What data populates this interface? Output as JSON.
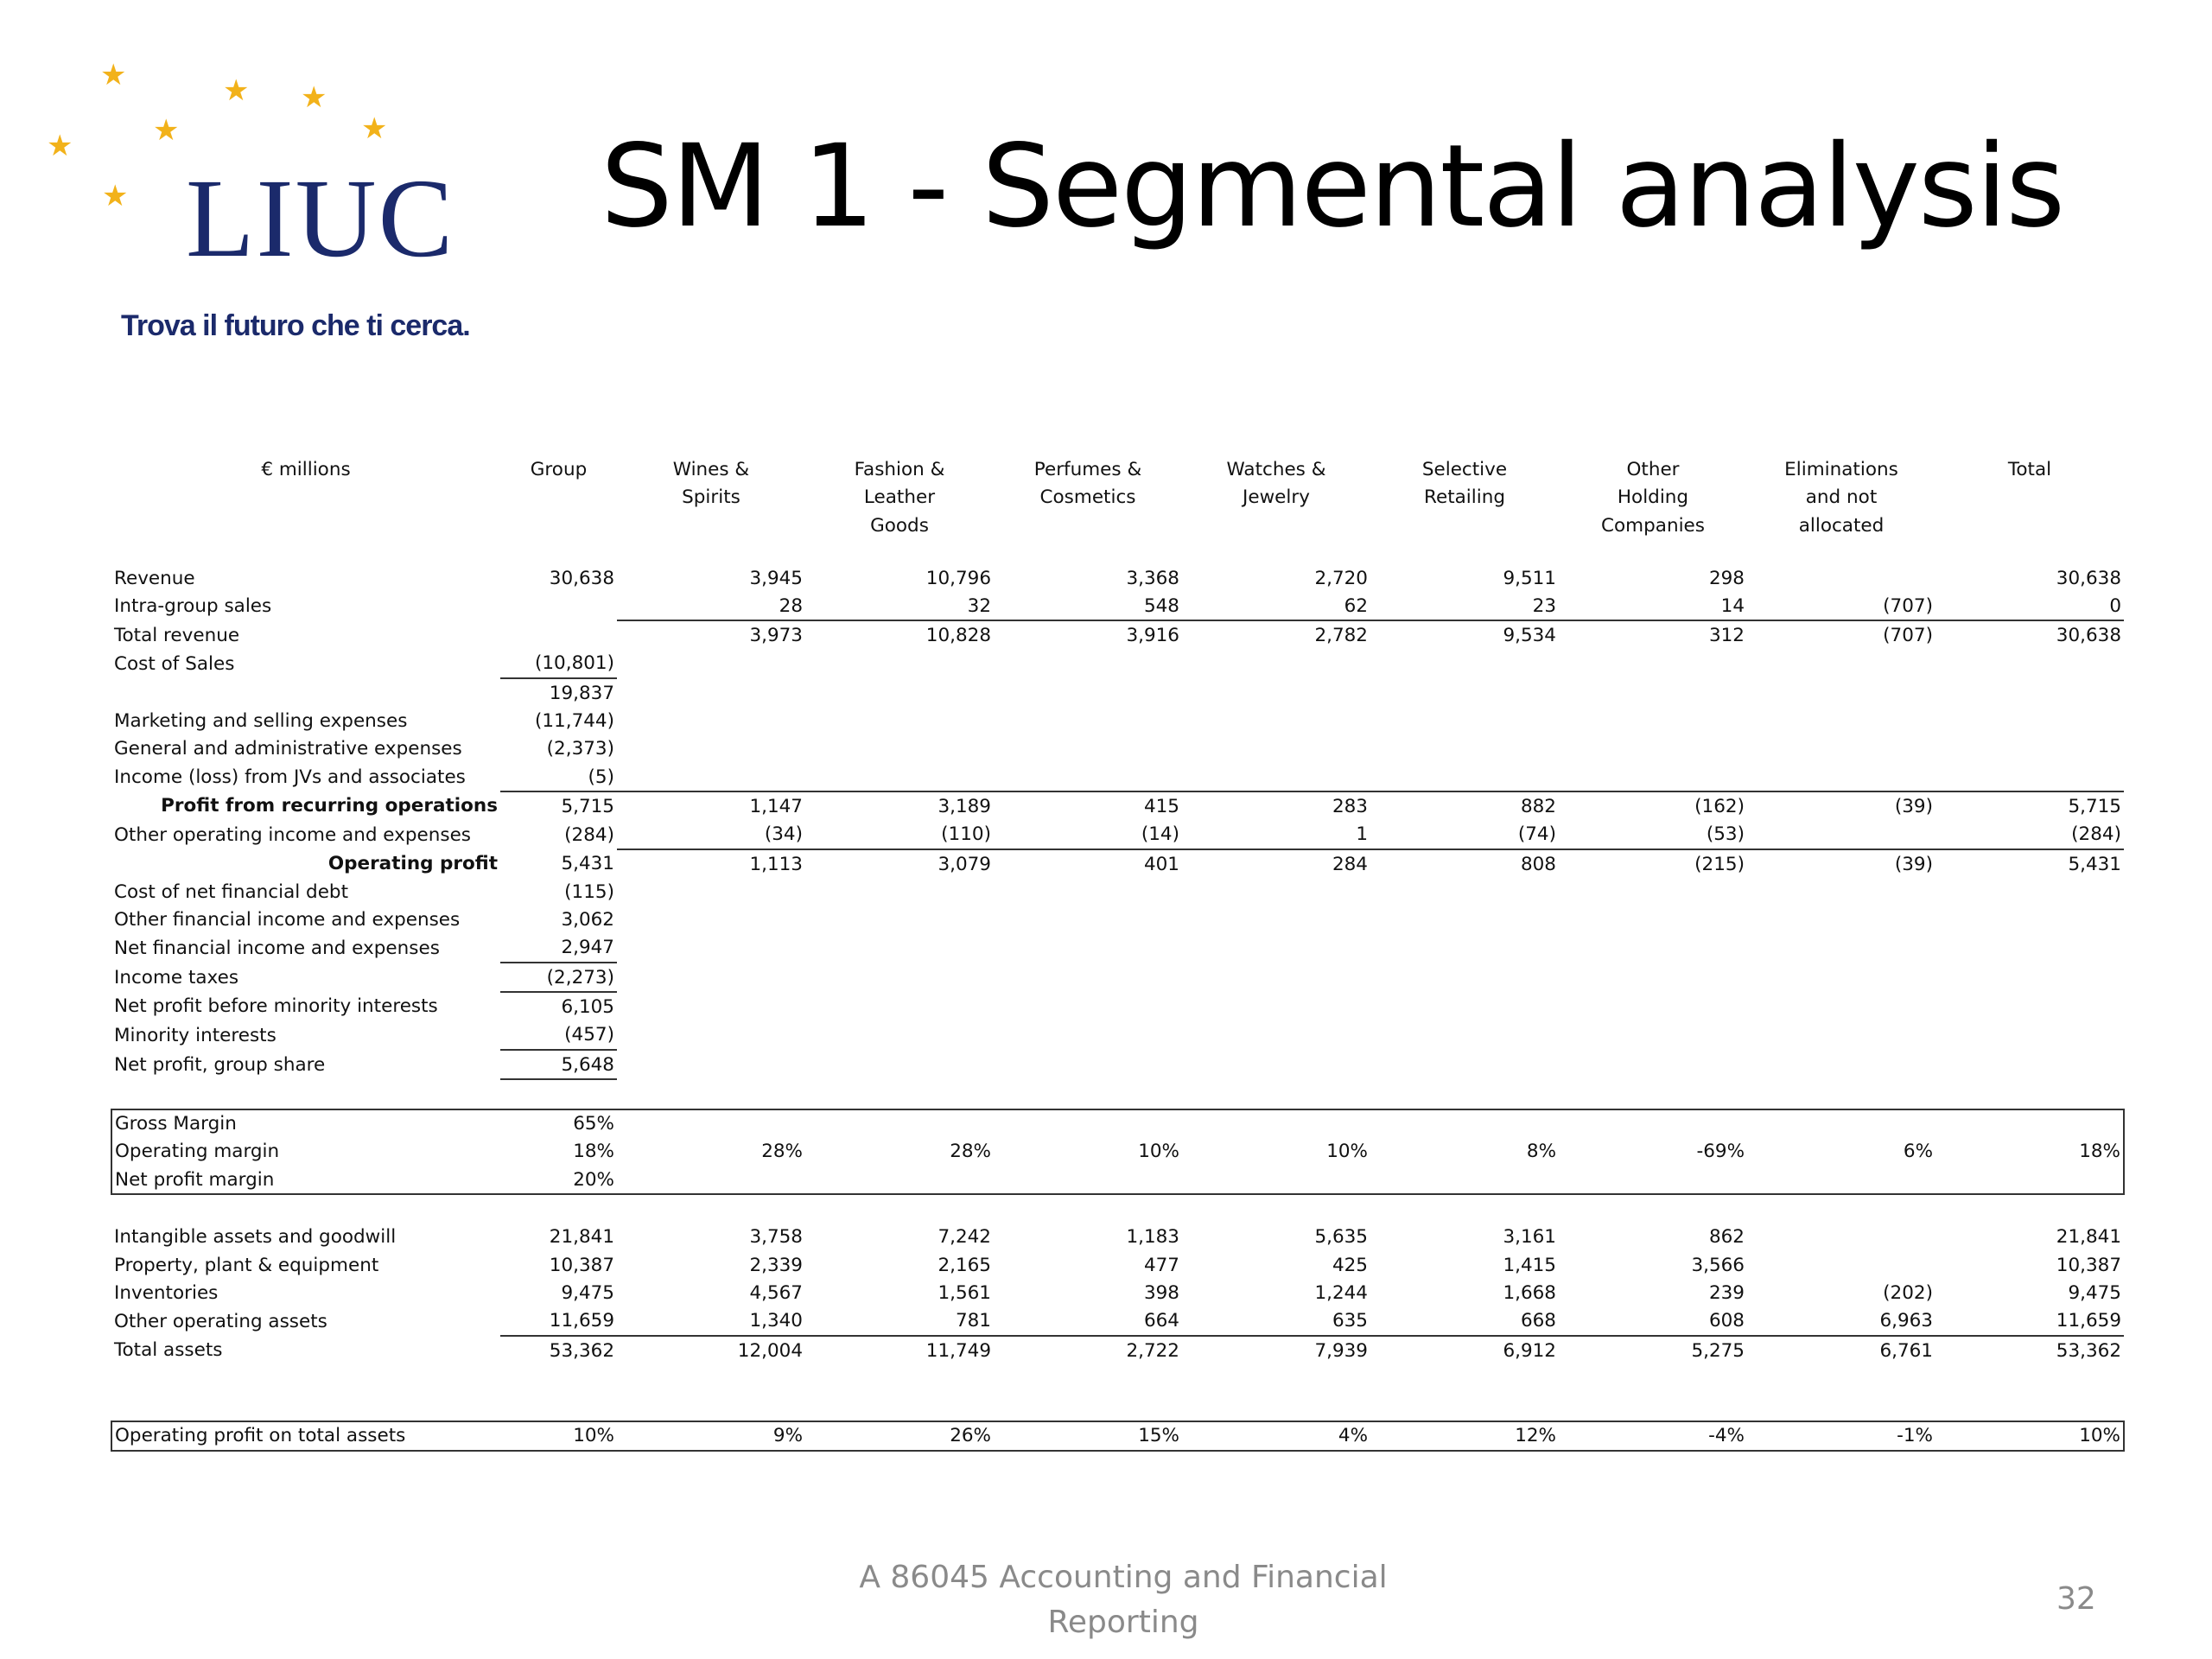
{
  "logo": {
    "wordmark": "LIUC",
    "tagline": "Trova il futuro che ti cerca."
  },
  "title": "SM 1 - Segmental analysis",
  "columns": [
    {
      "lines": [
        "€ millions"
      ]
    },
    {
      "lines": [
        "Group"
      ]
    },
    {
      "lines": [
        "Wines &",
        "Spirits"
      ]
    },
    {
      "lines": [
        "Fashion &",
        "Leather",
        "Goods"
      ]
    },
    {
      "lines": [
        "Perfumes &",
        "Cosmetics"
      ]
    },
    {
      "lines": [
        "Watches &",
        "Jewelry"
      ]
    },
    {
      "lines": [
        "Selective",
        "Retailing"
      ]
    },
    {
      "lines": [
        "Other",
        "Holding",
        "Companies"
      ]
    },
    {
      "lines": [
        "Eliminations",
        "and not",
        "allocated"
      ]
    },
    {
      "lines": [
        "Total"
      ]
    }
  ],
  "rows": [
    {
      "label": "Revenue",
      "cells": [
        "30,638",
        "3,945",
        "10,796",
        "3,368",
        "2,720",
        "9,511",
        "298",
        "",
        "30,638"
      ]
    },
    {
      "label": "Intra-group sales",
      "cells": [
        "",
        "28",
        "32",
        "548",
        "62",
        "23",
        "14",
        "(707)",
        "0"
      ]
    },
    {
      "label": "Total revenue",
      "cells": [
        "",
        "3,973",
        "10,828",
        "3,916",
        "2,782",
        "9,534",
        "312",
        "(707)",
        "30,638"
      ]
    },
    {
      "label": "Cost of Sales",
      "cells": [
        "(10,801)",
        "",
        "",
        "",
        "",
        "",
        "",
        "",
        ""
      ]
    },
    {
      "label": "",
      "cells": [
        "19,837",
        "",
        "",
        "",
        "",
        "",
        "",
        "",
        ""
      ]
    },
    {
      "label": "Marketing and selling expenses",
      "cells": [
        "(11,744)",
        "",
        "",
        "",
        "",
        "",
        "",
        "",
        ""
      ]
    },
    {
      "label": "General and administrative expenses",
      "cells": [
        "(2,373)",
        "",
        "",
        "",
        "",
        "",
        "",
        "",
        ""
      ]
    },
    {
      "label": "Income (loss) from JVs and associates",
      "cells": [
        "(5)",
        "",
        "",
        "",
        "",
        "",
        "",
        "",
        ""
      ]
    },
    {
      "label": "Profit from recurring operations",
      "cells": [
        "5,715",
        "1,147",
        "3,189",
        "415",
        "283",
        "882",
        "(162)",
        "(39)",
        "5,715"
      ]
    },
    {
      "label": "Other operating income and expenses",
      "cells": [
        "(284)",
        "(34)",
        "(110)",
        "(14)",
        "1",
        "(74)",
        "(53)",
        "",
        "(284)"
      ]
    },
    {
      "label": "Operating profit",
      "cells": [
        "5,431",
        "1,113",
        "3,079",
        "401",
        "284",
        "808",
        "(215)",
        "(39)",
        "5,431"
      ]
    },
    {
      "label": "Cost of net financial debt",
      "cells": [
        "(115)",
        "",
        "",
        "",
        "",
        "",
        "",
        "",
        ""
      ]
    },
    {
      "label": "Other financial income and expenses",
      "cells": [
        "3,062",
        "",
        "",
        "",
        "",
        "",
        "",
        "",
        ""
      ]
    },
    {
      "label": "Net financial income and expenses",
      "cells": [
        "2,947",
        "",
        "",
        "",
        "",
        "",
        "",
        "",
        ""
      ]
    },
    {
      "label": "Income taxes",
      "cells": [
        "(2,273)",
        "",
        "",
        "",
        "",
        "",
        "",
        "",
        ""
      ]
    },
    {
      "label": "Net profit before minority interests",
      "cells": [
        "6,105",
        "",
        "",
        "",
        "",
        "",
        "",
        "",
        ""
      ]
    },
    {
      "label": "Minority interests",
      "cells": [
        "(457)",
        "",
        "",
        "",
        "",
        "",
        "",
        "",
        ""
      ]
    },
    {
      "label": "Net profit, group share",
      "cells": [
        "5,648",
        "",
        "",
        "",
        "",
        "",
        "",
        "",
        ""
      ]
    }
  ],
  "margins": [
    {
      "label": "Gross Margin",
      "cells": [
        "65%",
        "",
        "",
        "",
        "",
        "",
        "",
        "",
        ""
      ]
    },
    {
      "label": "Operating margin",
      "cells": [
        "18%",
        "28%",
        "28%",
        "10%",
        "10%",
        "8%",
        "-69%",
        "6%",
        "18%"
      ]
    },
    {
      "label": "Net profit margin",
      "cells": [
        "20%",
        "",
        "",
        "",
        "",
        "",
        "",
        "",
        ""
      ]
    }
  ],
  "assets": [
    {
      "label": "Intangible assets and goodwill",
      "cells": [
        "21,841",
        "3,758",
        "7,242",
        "1,183",
        "5,635",
        "3,161",
        "862",
        "",
        "21,841"
      ]
    },
    {
      "label": "Property, plant & equipment",
      "cells": [
        "10,387",
        "2,339",
        "2,165",
        "477",
        "425",
        "1,415",
        "3,566",
        "",
        "10,387"
      ]
    },
    {
      "label": "Inventories",
      "cells": [
        "9,475",
        "4,567",
        "1,561",
        "398",
        "1,244",
        "1,668",
        "239",
        "(202)",
        "9,475"
      ]
    },
    {
      "label": "Other operating assets",
      "cells": [
        "11,659",
        "1,340",
        "781",
        "664",
        "635",
        "668",
        "608",
        "6,963",
        "11,659"
      ]
    },
    {
      "label": "Total assets",
      "cells": [
        "53,362",
        "12,004",
        "11,749",
        "2,722",
        "7,939",
        "6,912",
        "5,275",
        "6,761",
        "53,362"
      ]
    }
  ],
  "return_row": {
    "label": "Operating profit on total assets",
    "cells": [
      "10%",
      "9%",
      "26%",
      "15%",
      "4%",
      "12%",
      "-4%",
      "-1%",
      "10%"
    ]
  },
  "footer": {
    "line1": "A 86045 Accounting and Financial",
    "line2": "Reporting"
  },
  "page_number": "32",
  "colors": {
    "brand_navy": "#1b2a6b",
    "star_gold": "#f2b21a",
    "footer_gray": "#8a8a8a"
  }
}
